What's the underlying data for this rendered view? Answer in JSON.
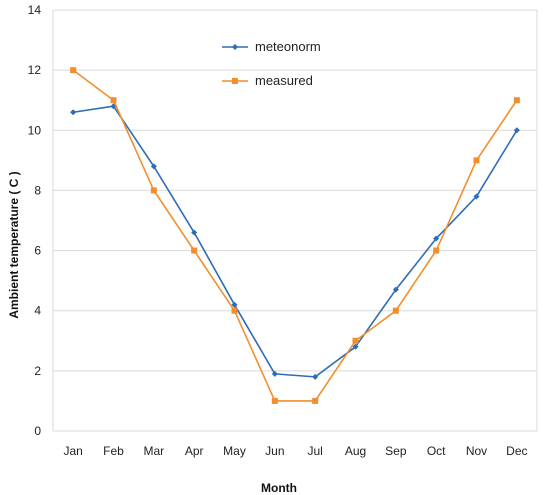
{
  "chart_data": {
    "type": "line",
    "title": "",
    "xlabel": "Month",
    "ylabel": "Ambient temperature ( C )",
    "categories": [
      "Jan",
      "Feb",
      "Mar",
      "Apr",
      "May",
      "Jun",
      "Jul",
      "Aug",
      "Sep",
      "Oct",
      "Nov",
      "Dec"
    ],
    "ylim": [
      0,
      14
    ],
    "yticks": [
      "0",
      "2",
      "4",
      "6",
      "8",
      "10",
      "12",
      "14"
    ],
    "grid": true,
    "legend_position": "top-center",
    "series": [
      {
        "name": "meteonorm",
        "color": "#2E6DB4",
        "marker": "diamond",
        "values": [
          10.6,
          10.8,
          8.8,
          6.6,
          4.2,
          1.9,
          1.8,
          2.8,
          4.7,
          6.4,
          7.8,
          10.0
        ]
      },
      {
        "name": "measured",
        "color": "#F28E2B",
        "marker": "square",
        "values": [
          12,
          11,
          8,
          6,
          4,
          1,
          1,
          3,
          4,
          6,
          9,
          11
        ]
      }
    ]
  }
}
